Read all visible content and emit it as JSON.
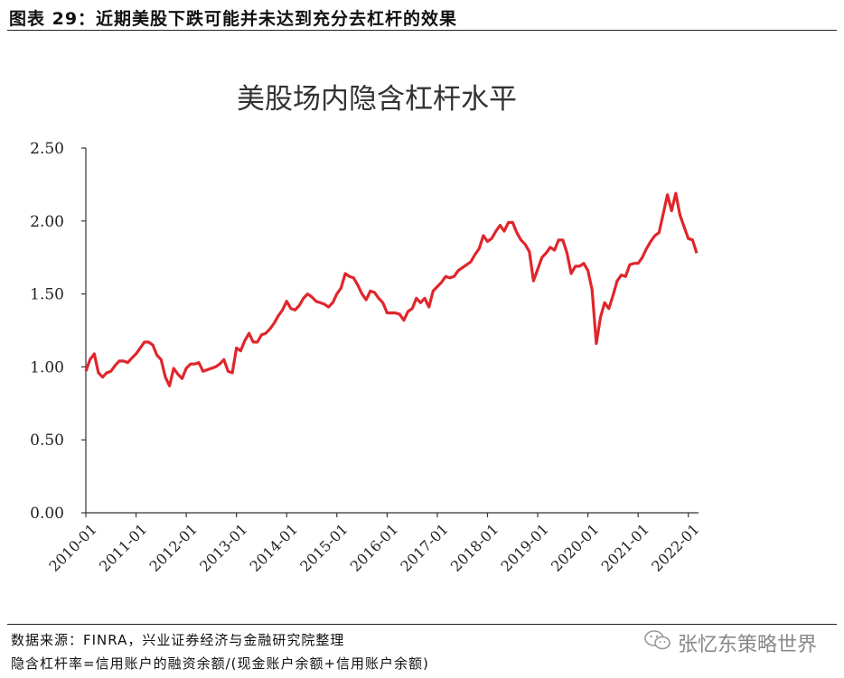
{
  "header": {
    "title": "图表 29：近期美股下跌可能并未达到充分去杠杆的效果"
  },
  "footer": {
    "source": "数据来源：FINRA，兴业证券经济与金融研究院整理",
    "note": "隐含杠杆率=信用账户的融资余额/(现金账户余额+信用账户余额)"
  },
  "watermark": {
    "text": "张忆东策略世界",
    "icon": "wechat-icon"
  },
  "colors": {
    "line": "#e0262b",
    "axis": "#333333"
  },
  "chart_data": {
    "type": "line",
    "title": "美股场内隐含杠杆水平",
    "xlabel": "",
    "ylabel": "",
    "ylim": [
      0,
      2.5
    ],
    "yticks": [
      "0.00",
      "0.50",
      "1.00",
      "1.50",
      "2.00",
      "2.50"
    ],
    "xticks": [
      "2010-01",
      "2011-01",
      "2012-01",
      "2013-01",
      "2014-01",
      "2015-01",
      "2016-01",
      "2017-01",
      "2018-01",
      "2019-01",
      "2020-01",
      "2021-01",
      "2022-01"
    ],
    "grid": false,
    "series": [
      {
        "x": [
          "2010-01",
          "2010-02",
          "2010-03",
          "2010-04",
          "2010-05",
          "2010-06",
          "2010-07",
          "2010-08",
          "2010-09",
          "2010-10",
          "2010-11",
          "2010-12",
          "2011-01",
          "2011-02",
          "2011-03",
          "2011-04",
          "2011-05",
          "2011-06",
          "2011-07",
          "2011-08",
          "2011-09",
          "2011-10",
          "2011-11",
          "2011-12",
          "2012-01",
          "2012-02",
          "2012-03",
          "2012-04",
          "2012-05",
          "2012-06",
          "2012-07",
          "2012-08",
          "2012-09",
          "2012-10",
          "2012-11",
          "2012-12",
          "2013-01",
          "2013-02",
          "2013-03",
          "2013-04",
          "2013-05",
          "2013-06",
          "2013-07",
          "2013-08",
          "2013-09",
          "2013-10",
          "2013-11",
          "2013-12",
          "2014-01",
          "2014-02",
          "2014-03",
          "2014-04",
          "2014-05",
          "2014-06",
          "2014-07",
          "2014-08",
          "2014-09",
          "2014-10",
          "2014-11",
          "2014-12",
          "2015-01",
          "2015-02",
          "2015-03",
          "2015-04",
          "2015-05",
          "2015-06",
          "2015-07",
          "2015-08",
          "2015-09",
          "2015-10",
          "2015-11",
          "2015-12",
          "2016-01",
          "2016-02",
          "2016-03",
          "2016-04",
          "2016-05",
          "2016-06",
          "2016-07",
          "2016-08",
          "2016-09",
          "2016-10",
          "2016-11",
          "2016-12",
          "2017-01",
          "2017-02",
          "2017-03",
          "2017-04",
          "2017-05",
          "2017-06",
          "2017-07",
          "2017-08",
          "2017-09",
          "2017-10",
          "2017-11",
          "2017-12",
          "2018-01",
          "2018-02",
          "2018-03",
          "2018-04",
          "2018-05",
          "2018-06",
          "2018-07",
          "2018-08",
          "2018-09",
          "2018-10",
          "2018-11",
          "2018-12",
          "2019-01",
          "2019-02",
          "2019-03",
          "2019-04",
          "2019-05",
          "2019-06",
          "2019-07",
          "2019-08",
          "2019-09",
          "2019-10",
          "2019-11",
          "2019-12",
          "2020-01",
          "2020-02",
          "2020-03",
          "2020-04",
          "2020-05",
          "2020-06",
          "2020-07",
          "2020-08",
          "2020-09",
          "2020-10",
          "2020-11",
          "2020-12",
          "2021-01",
          "2021-02",
          "2021-03",
          "2021-04",
          "2021-05",
          "2021-06",
          "2021-07",
          "2021-08",
          "2021-09",
          "2021-10",
          "2021-11",
          "2021-12",
          "2022-01",
          "2022-02",
          "2022-03"
        ],
        "values": [
          0.97,
          1.05,
          1.09,
          0.96,
          0.93,
          0.96,
          0.97,
          1.01,
          1.04,
          1.04,
          1.03,
          1.06,
          1.09,
          1.13,
          1.17,
          1.17,
          1.15,
          1.08,
          1.05,
          0.93,
          0.87,
          0.99,
          0.95,
          0.92,
          0.99,
          1.02,
          1.02,
          1.03,
          0.97,
          0.98,
          0.99,
          1.0,
          1.02,
          1.05,
          0.97,
          0.96,
          1.13,
          1.11,
          1.18,
          1.23,
          1.17,
          1.17,
          1.22,
          1.23,
          1.26,
          1.3,
          1.35,
          1.39,
          1.45,
          1.4,
          1.39,
          1.42,
          1.47,
          1.5,
          1.48,
          1.45,
          1.44,
          1.43,
          1.41,
          1.44,
          1.5,
          1.54,
          1.64,
          1.62,
          1.61,
          1.56,
          1.5,
          1.46,
          1.52,
          1.51,
          1.47,
          1.44,
          1.37,
          1.37,
          1.37,
          1.36,
          1.32,
          1.38,
          1.4,
          1.47,
          1.44,
          1.47,
          1.41,
          1.52,
          1.55,
          1.58,
          1.62,
          1.61,
          1.62,
          1.66,
          1.68,
          1.7,
          1.72,
          1.77,
          1.81,
          1.9,
          1.86,
          1.88,
          1.93,
          1.97,
          1.93,
          1.99,
          1.99,
          1.92,
          1.87,
          1.84,
          1.79,
          1.59,
          1.67,
          1.75,
          1.78,
          1.82,
          1.8,
          1.87,
          1.87,
          1.78,
          1.64,
          1.69,
          1.69,
          1.71,
          1.66,
          1.53,
          1.16,
          1.34,
          1.44,
          1.4,
          1.49,
          1.59,
          1.63,
          1.62,
          1.7,
          1.71,
          1.71,
          1.75,
          1.81,
          1.86,
          1.9,
          1.92,
          2.05,
          2.18,
          2.07,
          2.19,
          2.04,
          1.96,
          1.88,
          1.87,
          1.78
        ]
      }
    ]
  }
}
